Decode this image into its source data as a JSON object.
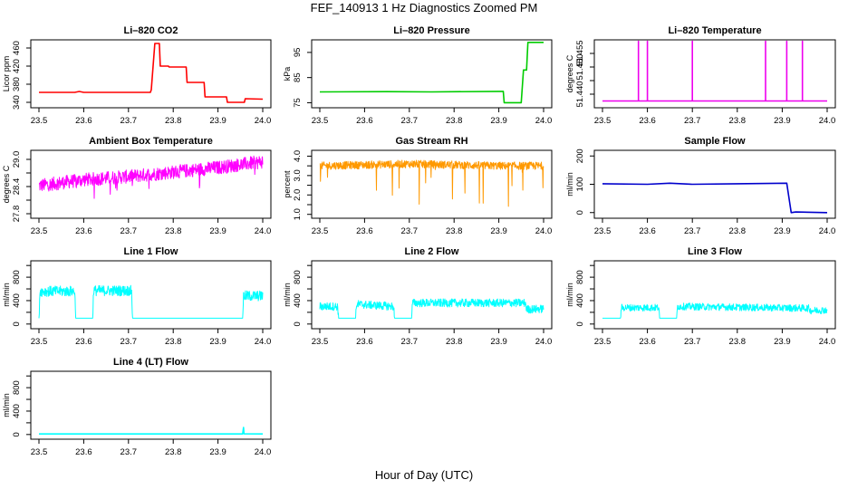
{
  "title": "FEF_140913  1 Hz Diagnostics Zoomed PM",
  "xlabel": "Hour of Day (UTC)",
  "x_ticks": [
    "23.5",
    "23.6",
    "23.7",
    "23.8",
    "23.9",
    "24.0"
  ],
  "chart_data": [
    {
      "type": "line",
      "title": "Li–820 CO2",
      "ylabel": "Licor ppm",
      "color": "#ff0000",
      "xlim": [
        23.5,
        24.0
      ],
      "ylim": [
        328,
        478
      ],
      "yticks": [
        340,
        380,
        420,
        460
      ],
      "ytick_labels": [
        "340",
        "380",
        "420",
        "460"
      ],
      "series": [
        {
          "x": [
            23.5,
            23.58,
            23.59,
            23.6,
            23.749,
            23.751,
            23.759,
            23.762,
            23.769,
            23.771,
            23.789,
            23.791,
            23.829,
            23.831,
            23.869,
            23.871,
            23.919,
            23.921,
            23.959,
            23.961,
            24.0
          ],
          "y": [
            362,
            362,
            364,
            362,
            362,
            368,
            470,
            470,
            470,
            420,
            420,
            418,
            418,
            384,
            384,
            352,
            352,
            340,
            340,
            348,
            347
          ]
        }
      ]
    },
    {
      "type": "line",
      "title": "Li–820 Pressure",
      "ylabel": "kPa",
      "color": "#00cc00",
      "xlim": [
        23.5,
        24.0
      ],
      "ylim": [
        73,
        100
      ],
      "yticks": [
        75,
        85,
        95
      ],
      "ytick_labels": [
        "75",
        "85",
        "95"
      ],
      "series": [
        {
          "x": [
            23.5,
            23.65,
            23.75,
            23.9,
            23.91,
            23.912,
            23.95,
            23.955,
            23.962,
            23.965,
            24.0
          ],
          "y": [
            79.3,
            79.4,
            79.3,
            79.5,
            79.5,
            75,
            75,
            88,
            88,
            99,
            99
          ]
        }
      ]
    },
    {
      "type": "line",
      "title": "Li–820 Temperature",
      "ylabel": "degrees C",
      "color": "#ee00ee",
      "xlim": [
        23.5,
        24.0
      ],
      "ylim": [
        51.435,
        51.46
      ],
      "yticks": [
        51.44,
        51.445,
        51.45,
        51.455
      ],
      "ytick_labels": [
        "51.440",
        "",
        "51.450",
        "51.455"
      ],
      "series": [
        {
          "x": [
            23.5,
            23.58,
            23.58,
            23.58,
            23.6,
            23.6,
            23.6,
            23.7,
            23.7,
            23.7,
            23.863,
            23.863,
            23.863,
            23.91,
            23.91,
            23.91,
            23.945,
            23.945,
            23.945,
            24.0
          ],
          "y": [
            51.4375,
            51.4375,
            51.4595,
            51.4375,
            51.4375,
            51.4595,
            51.4375,
            51.4375,
            51.4595,
            51.4375,
            51.4375,
            51.4595,
            51.4375,
            51.4375,
            51.4595,
            51.4375,
            51.4375,
            51.4595,
            51.4375,
            51.4375
          ]
        }
      ]
    },
    {
      "type": "line",
      "title": "Ambient Box Temperature",
      "ylabel": "degrees C",
      "color": "#ff00ff",
      "xlim": [
        23.5,
        24.0
      ],
      "ylim": [
        27.7,
        29.2
      ],
      "yticks": [
        27.8,
        28.4,
        29.0
      ],
      "minor_yticks": [
        28.1,
        28.7
      ],
      "ytick_labels": [
        "27.8",
        "28.4",
        "29.0"
      ],
      "noise": {
        "amplitude": 0.15,
        "spike": 0.35
      },
      "series": [
        {
          "x": [
            23.5,
            23.6,
            23.7,
            23.8,
            23.9,
            24.0
          ],
          "y": [
            28.42,
            28.55,
            28.62,
            28.72,
            28.82,
            28.95
          ]
        }
      ]
    },
    {
      "type": "line",
      "title": "Gas Stream RH",
      "ylabel": "percent",
      "color": "#ff9900",
      "xlim": [
        23.5,
        24.0
      ],
      "ylim": [
        0.8,
        4.3
      ],
      "yticks": [
        1.0,
        1.5,
        2.0,
        2.5,
        3.0,
        3.5,
        4.0
      ],
      "ytick_labels": [
        "1.0",
        "",
        "2.0",
        "",
        "3.0",
        "",
        "4.0"
      ],
      "noise": {
        "amplitude": 0.2,
        "spike": 1.4
      },
      "series": [
        {
          "x": [
            23.5,
            23.6,
            23.7,
            23.8,
            23.9,
            24.0
          ],
          "y": [
            3.5,
            3.55,
            3.6,
            3.55,
            3.5,
            3.5
          ]
        }
      ]
    },
    {
      "type": "line",
      "title": "Sample Flow",
      "ylabel": "ml/min",
      "color": "#0000cc",
      "xlim": [
        23.5,
        24.0
      ],
      "ylim": [
        -20,
        220
      ],
      "yticks": [
        0,
        100,
        200
      ],
      "ytick_labels": [
        "0",
        "100",
        "200"
      ],
      "series": [
        {
          "x": [
            23.5,
            23.6,
            23.65,
            23.7,
            23.8,
            23.91,
            23.92,
            23.93,
            24.0
          ],
          "y": [
            102,
            100,
            104,
            100,
            102,
            104,
            0,
            2,
            0
          ]
        }
      ]
    },
    {
      "type": "line",
      "title": "Line 1 Flow",
      "ylabel": "ml/min",
      "color": "#00ffff",
      "xlim": [
        23.5,
        24.0
      ],
      "ylim": [
        -80,
        1080
      ],
      "yticks": [
        0,
        200,
        400,
        600,
        800,
        1000
      ],
      "ytick_labels": [
        "0",
        "",
        "400",
        "",
        "800",
        ""
      ],
      "noise": {
        "amplitude": 90
      },
      "series": [
        {
          "x": [
            23.5,
            23.502,
            23.58,
            23.582,
            23.62,
            23.622,
            23.707,
            23.709,
            23.955,
            23.957,
            24.0
          ],
          "y": [
            100,
            560,
            560,
            100,
            100,
            570,
            570,
            100,
            100,
            480,
            480
          ]
        }
      ]
    },
    {
      "type": "line",
      "title": "Line 2 Flow",
      "ylabel": "ml/min",
      "color": "#00ffff",
      "xlim": [
        23.5,
        24.0
      ],
      "ylim": [
        -80,
        1080
      ],
      "yticks": [
        0,
        200,
        400,
        600,
        800,
        1000
      ],
      "ytick_labels": [
        "0",
        "",
        "400",
        "",
        "800",
        ""
      ],
      "noise": {
        "amplitude": 70
      },
      "series": [
        {
          "x": [
            23.5,
            23.54,
            23.542,
            23.58,
            23.582,
            23.665,
            23.667,
            23.705,
            23.707,
            23.96,
            23.962,
            24.0
          ],
          "y": [
            300,
            300,
            100,
            100,
            340,
            300,
            100,
            100,
            360,
            360,
            250,
            260
          ]
        }
      ]
    },
    {
      "type": "line",
      "title": "Line 3 Flow",
      "ylabel": "ml/min",
      "color": "#00ffff",
      "xlim": [
        23.5,
        24.0
      ],
      "ylim": [
        -80,
        1080
      ],
      "yticks": [
        0,
        200,
        400,
        600,
        800,
        1000
      ],
      "ytick_labels": [
        "0",
        "",
        "400",
        "",
        "800",
        ""
      ],
      "noise": {
        "amplitude": 60
      },
      "series": [
        {
          "x": [
            23.5,
            23.502,
            23.54,
            23.542,
            23.625,
            23.627,
            23.665,
            23.667,
            23.96,
            23.962,
            24.0
          ],
          "y": [
            100,
            100,
            100,
            280,
            280,
            100,
            100,
            300,
            270,
            230,
            240
          ]
        }
      ]
    },
    {
      "type": "line",
      "title": "Line 4 (LT) Flow",
      "ylabel": "ml/min",
      "color": "#00ffff",
      "xlim": [
        23.5,
        24.0
      ],
      "ylim": [
        -80,
        1080
      ],
      "yticks": [
        0,
        200,
        400,
        600,
        800,
        1000
      ],
      "ytick_labels": [
        "0",
        "",
        "400",
        "",
        "800",
        ""
      ],
      "series": [
        {
          "x": [
            23.5,
            23.955,
            23.957,
            23.958,
            24.0
          ],
          "y": [
            10,
            10,
            120,
            12,
            10
          ]
        }
      ]
    }
  ]
}
